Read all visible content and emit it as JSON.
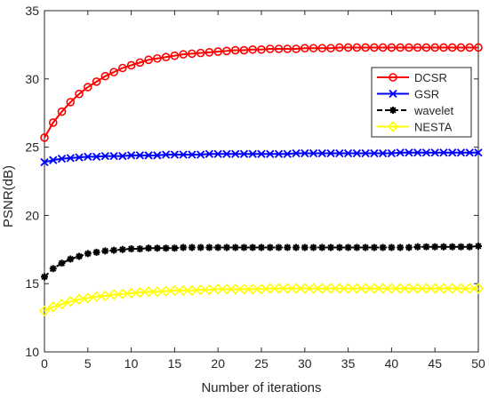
{
  "chart_data": {
    "type": "line",
    "xlabel": "Number of iterations",
    "ylabel": "PSNR(dB)",
    "xlim": [
      0,
      50
    ],
    "ylim": [
      10,
      35
    ],
    "xticks": [
      0,
      5,
      10,
      15,
      20,
      25,
      30,
      35,
      40,
      45,
      50
    ],
    "yticks": [
      10,
      15,
      20,
      25,
      30,
      35
    ],
    "grid": false,
    "legend_position": "top-right",
    "x": [
      0,
      1,
      2,
      3,
      4,
      5,
      6,
      7,
      8,
      9,
      10,
      11,
      12,
      13,
      14,
      15,
      16,
      17,
      18,
      19,
      20,
      21,
      22,
      23,
      24,
      25,
      26,
      27,
      28,
      29,
      30,
      31,
      32,
      33,
      34,
      35,
      36,
      37,
      38,
      39,
      40,
      41,
      42,
      43,
      44,
      45,
      46,
      47,
      48,
      49,
      50
    ],
    "series": [
      {
        "name": "DCSR",
        "color": "#ff0000",
        "marker": "circle",
        "values": [
          25.7,
          26.8,
          27.6,
          28.3,
          28.9,
          29.4,
          29.8,
          30.2,
          30.5,
          30.8,
          31.0,
          31.2,
          31.4,
          31.5,
          31.6,
          31.7,
          31.8,
          31.85,
          31.9,
          31.95,
          32.0,
          32.05,
          32.1,
          32.1,
          32.15,
          32.15,
          32.2,
          32.2,
          32.2,
          32.2,
          32.25,
          32.25,
          32.25,
          32.25,
          32.3,
          32.3,
          32.3,
          32.3,
          32.3,
          32.3,
          32.3,
          32.3,
          32.3,
          32.3,
          32.3,
          32.3,
          32.3,
          32.3,
          32.3,
          32.3,
          32.3
        ]
      },
      {
        "name": "GSR",
        "color": "#0000ff",
        "marker": "x",
        "values": [
          23.9,
          24.05,
          24.15,
          24.2,
          24.25,
          24.3,
          24.3,
          24.35,
          24.35,
          24.35,
          24.4,
          24.4,
          24.4,
          24.4,
          24.45,
          24.45,
          24.45,
          24.45,
          24.45,
          24.5,
          24.5,
          24.5,
          24.5,
          24.5,
          24.5,
          24.5,
          24.5,
          24.5,
          24.5,
          24.55,
          24.55,
          24.55,
          24.55,
          24.55,
          24.55,
          24.55,
          24.55,
          24.55,
          24.55,
          24.55,
          24.55,
          24.6,
          24.6,
          24.6,
          24.6,
          24.6,
          24.6,
          24.6,
          24.6,
          24.6,
          24.6
        ]
      },
      {
        "name": "wavelet",
        "color": "#000000",
        "marker": "asterisk",
        "values": [
          15.5,
          16.1,
          16.5,
          16.8,
          17.0,
          17.2,
          17.3,
          17.4,
          17.45,
          17.5,
          17.55,
          17.55,
          17.6,
          17.6,
          17.6,
          17.6,
          17.65,
          17.65,
          17.65,
          17.65,
          17.65,
          17.65,
          17.65,
          17.65,
          17.65,
          17.65,
          17.65,
          17.65,
          17.65,
          17.65,
          17.65,
          17.65,
          17.65,
          17.65,
          17.65,
          17.65,
          17.65,
          17.65,
          17.65,
          17.65,
          17.65,
          17.65,
          17.65,
          17.7,
          17.7,
          17.7,
          17.7,
          17.7,
          17.7,
          17.7,
          17.75
        ]
      },
      {
        "name": "NESTA",
        "color": "#ffff00",
        "marker": "diamond",
        "values": [
          13.0,
          13.3,
          13.5,
          13.7,
          13.85,
          13.95,
          14.05,
          14.1,
          14.2,
          14.25,
          14.3,
          14.35,
          14.4,
          14.4,
          14.45,
          14.5,
          14.5,
          14.5,
          14.55,
          14.55,
          14.6,
          14.6,
          14.6,
          14.6,
          14.6,
          14.6,
          14.65,
          14.65,
          14.65,
          14.65,
          14.65,
          14.65,
          14.65,
          14.65,
          14.65,
          14.65,
          14.65,
          14.65,
          14.65,
          14.65,
          14.65,
          14.65,
          14.65,
          14.65,
          14.65,
          14.65,
          14.65,
          14.65,
          14.65,
          14.65,
          14.65
        ]
      }
    ]
  }
}
